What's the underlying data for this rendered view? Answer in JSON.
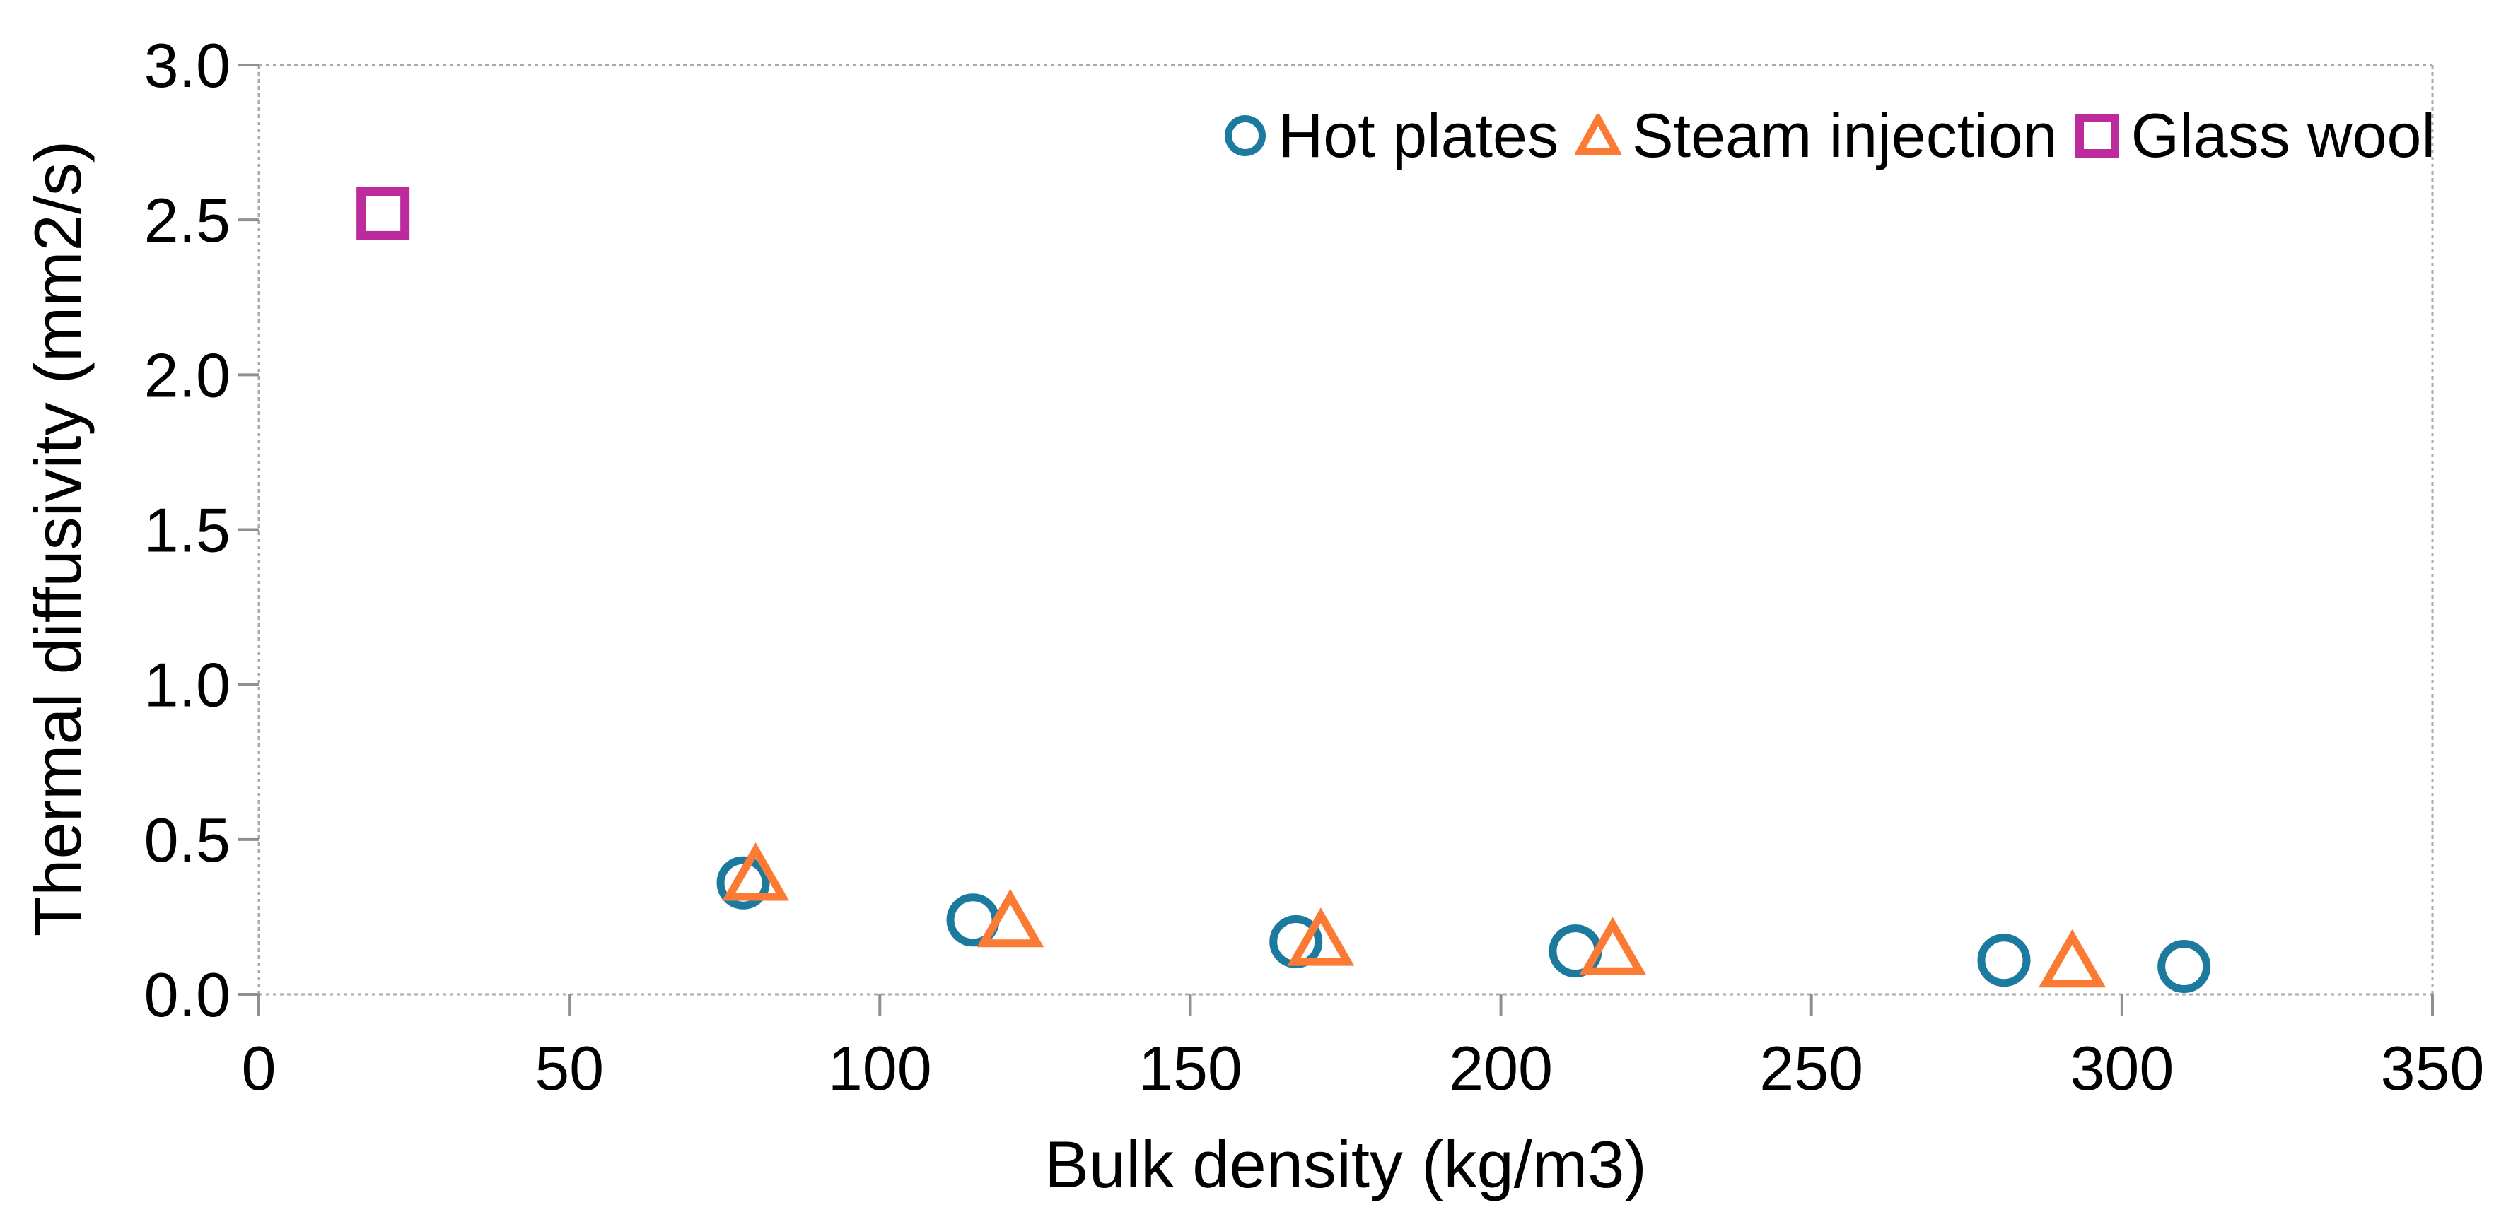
{
  "chart_data": {
    "type": "scatter",
    "title": "",
    "xlabel": "Bulk density (kg/m3)",
    "ylabel": "Thermal diffusivity (mm2/s)",
    "xlim": [
      0,
      350
    ],
    "ylim": [
      0.0,
      3.0
    ],
    "x_ticks": [
      0,
      50,
      100,
      150,
      200,
      250,
      300,
      350
    ],
    "x_tick_labels": [
      "0",
      "50",
      "100",
      "150",
      "200",
      "250",
      "300",
      "350"
    ],
    "y_ticks": [
      0.0,
      0.5,
      1.0,
      1.5,
      2.0,
      2.5,
      3.0
    ],
    "y_tick_labels": [
      "0.0",
      "0.5",
      "1.0",
      "1.5",
      "2.0",
      "2.5",
      "3.0"
    ],
    "grid": false,
    "legend_position": "top-right-inside",
    "series": [
      {
        "name": "Hot plates",
        "marker": "circle",
        "color": "#1b7a9d",
        "points": [
          [
            78,
            0.36
          ],
          [
            115,
            0.24
          ],
          [
            167,
            0.17
          ],
          [
            212,
            0.14
          ],
          [
            281,
            0.11
          ],
          [
            310,
            0.09
          ]
        ]
      },
      {
        "name": "Steam injection",
        "marker": "triangle",
        "color": "#fb7b35",
        "points": [
          [
            80,
            0.39
          ],
          [
            121,
            0.24
          ],
          [
            171,
            0.18
          ],
          [
            218,
            0.15
          ],
          [
            292,
            0.11
          ]
        ]
      },
      {
        "name": "Glass wool",
        "marker": "square",
        "color": "#bc2a9c",
        "points": [
          [
            20,
            2.52
          ]
        ]
      }
    ]
  },
  "colors": {
    "axis_line": "#a9a9a9",
    "tick_mark": "#8f8f8f",
    "text": "#000000",
    "background": "#ffffff"
  }
}
